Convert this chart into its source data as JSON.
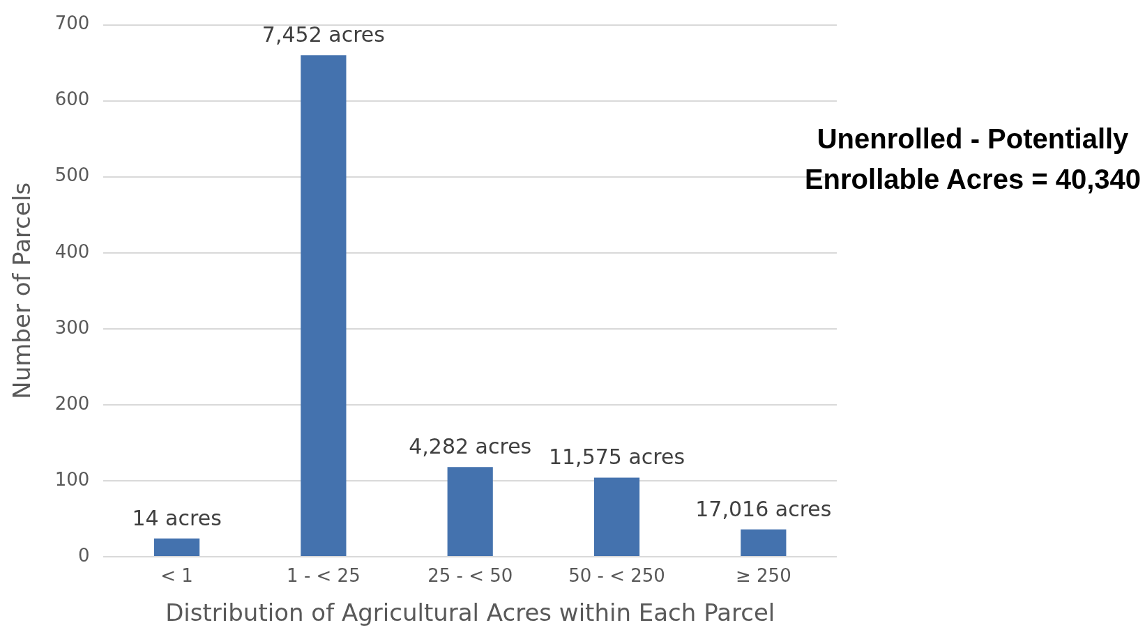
{
  "chart_data": {
    "type": "bar",
    "xlabel": "Distribution of Agricultural Acres within Each Parcel",
    "ylabel": "Number of Parcels",
    "categories": [
      "< 1",
      "1 - < 25",
      "25 - < 50",
      "50 - < 250",
      "≥ 250"
    ],
    "values": [
      24,
      660,
      118,
      104,
      36
    ],
    "color": "#4472ae",
    "ylim": [
      0,
      700
    ],
    "yticks": [
      0,
      100,
      200,
      300,
      400,
      500,
      600,
      700
    ],
    "grid": "y",
    "legend": false,
    "annotations": [
      {
        "text": "14 acres",
        "x": "< 1",
        "y": 24
      },
      {
        "text": "7,452 acres",
        "x": "1 - < 25",
        "y": 660
      },
      {
        "text": "4,282 acres",
        "x": "25 - < 50",
        "y": 118
      },
      {
        "text": "11,575 acres",
        "x": "50 - < 250",
        "y": 104
      },
      {
        "text": "17,016 acres",
        "x": "≥ 250",
        "y": 36
      },
      "Unenrolled - Potentially Enrollable Acres = 40,340"
    ]
  }
}
